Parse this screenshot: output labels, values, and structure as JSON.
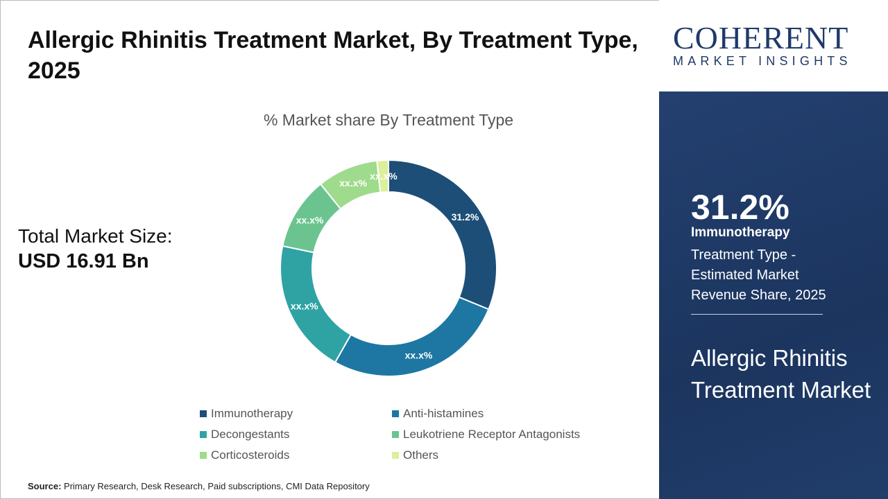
{
  "header": {
    "title": "Allergic Rhinitis Treatment Market, By Treatment Type, 2025"
  },
  "total": {
    "label": "Total Market Size:",
    "value": "USD 16.91 Bn"
  },
  "chart_data": {
    "type": "donut",
    "title": "% Market share By Treatment Type",
    "categories": [
      "Immunotherapy",
      "Anti-histamines",
      "Decongestants",
      "Leukotriene Receptor Antagonists",
      "Corticosteroids",
      "Others"
    ],
    "values": [
      31.2,
      27.0,
      20.1,
      10.9,
      9.1,
      1.7
    ],
    "data_labels": [
      "31.2%",
      "xx.x%",
      "xx.x%",
      "xx.x%",
      "xx.x%",
      "xx.x%"
    ],
    "colors": [
      "#1d4e77",
      "#1d77a2",
      "#2fa3a4",
      "#6bc48f",
      "#9edb8c",
      "#dbef9c"
    ],
    "legend_position": "bottom"
  },
  "source": {
    "label": "Source:",
    "text": "Primary Research, Desk Research, Paid subscriptions, CMI Data Repository"
  },
  "logo": {
    "line1": "COHERENT",
    "line2": "MARKET INSIGHTS"
  },
  "panel": {
    "percent": "31.2%",
    "segment": "Immunotherapy",
    "description": "Treatment Type - Estimated Market Revenue Share, 2025",
    "market": "Allergic Rhinitis Treatment Market"
  }
}
